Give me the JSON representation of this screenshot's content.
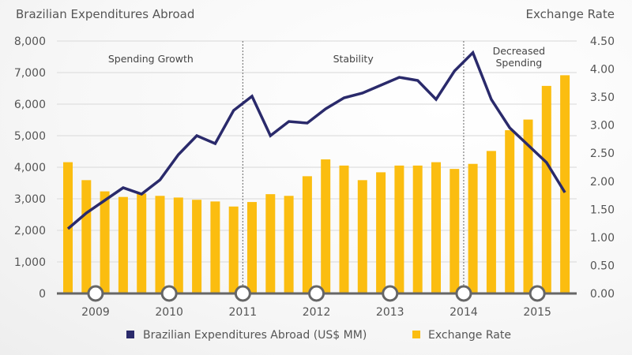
{
  "chart_data": {
    "type": "bar+line",
    "title_left": "Brazilian Expenditures Abroad",
    "title_right": "Exchange Rate",
    "y_left": {
      "min": 0,
      "max": 8000,
      "ticks": [
        "0",
        "1,000",
        "2,000",
        "3,000",
        "4,000",
        "5,000",
        "6,000",
        "7,000",
        "8,000"
      ],
      "tick_values": [
        0,
        1000,
        2000,
        3000,
        4000,
        5000,
        6000,
        7000,
        8000
      ]
    },
    "y_right": {
      "min": 0,
      "max": 4.5,
      "ticks": [
        "0.00",
        "0.50",
        "1.00",
        "1.50",
        "2.00",
        "2.50",
        "3.00",
        "3.50",
        "4.00",
        "4.50"
      ],
      "tick_values": [
        0,
        0.5,
        1,
        1.5,
        2,
        2.5,
        3,
        3.5,
        4,
        4.5
      ]
    },
    "x_year_labels": [
      "2009",
      "2010",
      "2011",
      "2012",
      "2013",
      "2014",
      "2015"
    ],
    "x_year_positions": [
      1.5,
      5.5,
      9.5,
      13.5,
      17.5,
      21.5,
      25.5
    ],
    "annotations": [
      {
        "text": [
          "Spending Growth"
        ],
        "at": 4.5
      },
      {
        "text": [
          "Stability"
        ],
        "at": 15.5
      },
      {
        "text": [
          "Decreased",
          "Spending"
        ],
        "at": 24.5
      }
    ],
    "dividers": [
      9.5,
      21.5
    ],
    "grid": true,
    "legend_position": "bottom",
    "series": [
      {
        "name": "Brazilian Expenditures Abroad (US$ MM)",
        "type": "line",
        "axis": "left",
        "color": "#2a2a6b",
        "values": [
          2050,
          2550,
          2950,
          3350,
          3150,
          3600,
          4400,
          5000,
          4750,
          5800,
          6250,
          5000,
          5450,
          5400,
          5850,
          6200,
          6350,
          6600,
          6850,
          6750,
          6150,
          7050,
          7630,
          6150,
          5250,
          4700,
          4150,
          3200
        ]
      },
      {
        "name": "Exchange Rate",
        "type": "bar",
        "axis": "right",
        "color": "#fbbd10",
        "values": [
          2.34,
          2.02,
          1.82,
          1.72,
          1.78,
          1.74,
          1.71,
          1.67,
          1.64,
          1.55,
          1.63,
          1.77,
          1.74,
          2.09,
          2.39,
          2.28,
          2.02,
          2.16,
          2.28,
          2.28,
          2.34,
          2.22,
          2.31,
          2.54,
          2.91,
          3.1,
          3.7,
          3.89
        ]
      }
    ]
  }
}
